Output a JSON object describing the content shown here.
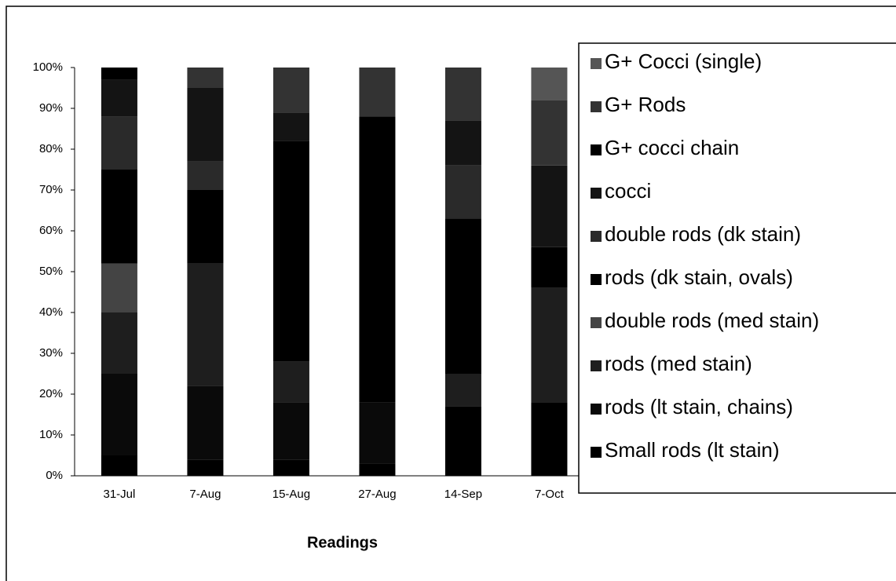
{
  "chart_data": {
    "type": "stacked_bar",
    "xlabel": "Readings",
    "categories": [
      "31-Jul",
      "7-Aug",
      "15-Aug",
      "27-Aug",
      "14-Sep",
      "7-Oct"
    ],
    "ylim": [
      0,
      100
    ],
    "yticks": [
      {
        "value": 0,
        "label": "0%"
      },
      {
        "value": 10,
        "label": "10%"
      },
      {
        "value": 20,
        "label": "20%"
      },
      {
        "value": 30,
        "label": "30%"
      },
      {
        "value": 40,
        "label": "40%"
      },
      {
        "value": 50,
        "label": "50%"
      },
      {
        "value": 60,
        "label": "60%"
      },
      {
        "value": 70,
        "label": "70%"
      },
      {
        "value": 80,
        "label": "80%"
      },
      {
        "value": 90,
        "label": "90%"
      },
      {
        "value": 100,
        "label": "100%"
      }
    ],
    "legend": "right",
    "series": [
      {
        "name": "Small rods (lt stain)",
        "color": "#000000",
        "values": [
          5,
          4,
          4,
          3,
          17,
          18
        ]
      },
      {
        "name": "rods (lt stain, chains)",
        "color": "#0a0a0a",
        "values": [
          20,
          18,
          14,
          15,
          0,
          0
        ]
      },
      {
        "name": "rods (med stain)",
        "color": "#1e1e1e",
        "values": [
          15,
          30,
          10,
          0,
          8,
          28
        ]
      },
      {
        "name": "double rods (med stain)",
        "color": "#444444",
        "values": [
          12,
          0,
          0,
          0,
          0,
          0
        ]
      },
      {
        "name": "rods (dk stain, ovals)",
        "color": "#000000",
        "values": [
          23,
          18,
          54,
          70,
          38,
          10
        ]
      },
      {
        "name": "double rods  (dk stain)",
        "color": "#2a2a2a",
        "values": [
          13,
          7,
          0,
          0,
          13,
          0
        ]
      },
      {
        "name": "cocci",
        "color": "#141414",
        "values": [
          9,
          18,
          7,
          0,
          11,
          20
        ]
      },
      {
        "name": "G+ cocci chain",
        "color": "#000000",
        "values": [
          3,
          0,
          0,
          0,
          0,
          0
        ]
      },
      {
        "name": "G+ Rods",
        "color": "#333333",
        "values": [
          0,
          5,
          11,
          12,
          13,
          16
        ]
      },
      {
        "name": "G+ Cocci (single)",
        "color": "#555555",
        "values": [
          0,
          0,
          0,
          0,
          0,
          8
        ]
      }
    ]
  }
}
